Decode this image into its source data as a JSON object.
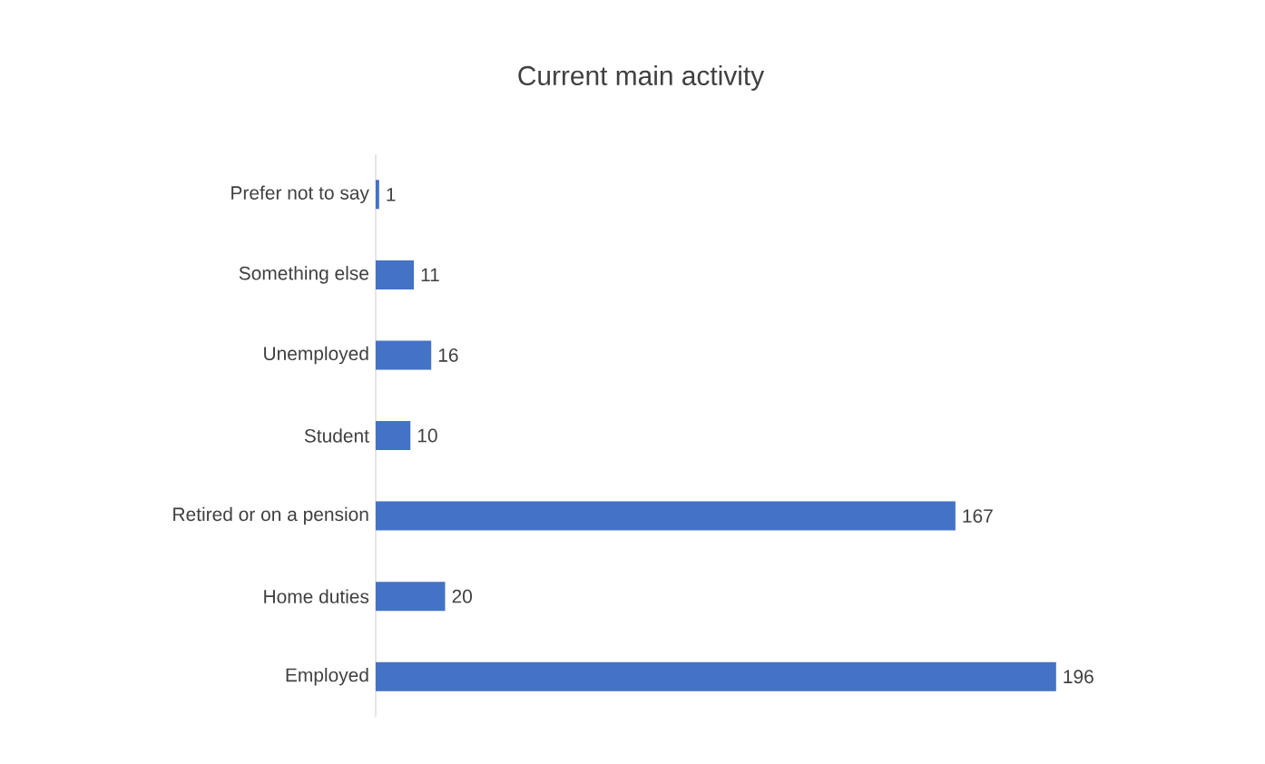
{
  "chart_data": {
    "type": "bar",
    "orientation": "horizontal",
    "title": "Current main activity",
    "categories": [
      "Prefer not to say",
      "Something else",
      "Unemployed",
      "Student",
      "Retired or on a pension",
      "Home duties",
      "Employed"
    ],
    "values": [
      1,
      11,
      16,
      10,
      167,
      20,
      196
    ],
    "color": "#4472c4",
    "data_labels": true
  }
}
